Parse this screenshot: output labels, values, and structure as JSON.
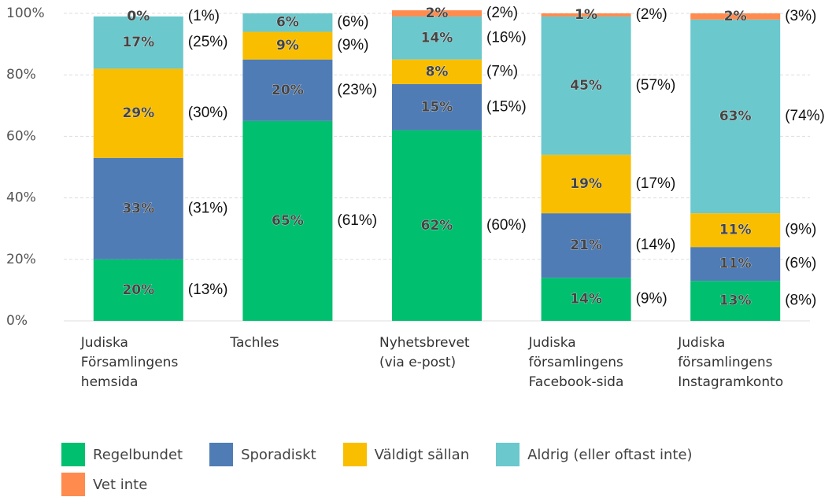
{
  "chart_data": {
    "type": "stacked_bar",
    "categories": [
      "Judiska Församlingens hemsida",
      "Tachles",
      "Nyhetsbrevet (via e-post)",
      "Judiska församlingens Facebook-sida",
      "Judiska församlingens Instagramkonto"
    ],
    "ylim": [
      0,
      100
    ],
    "yticks": [
      {
        "value": 0,
        "label": "0%"
      },
      {
        "value": 20,
        "label": "20%"
      },
      {
        "value": 40,
        "label": "40%"
      },
      {
        "value": 60,
        "label": "60%"
      },
      {
        "value": 80,
        "label": "80%"
      },
      {
        "value": 100,
        "label": "100%"
      }
    ],
    "grid": true,
    "series": [
      {
        "name": "Regelbundet",
        "color": "#00bf6f",
        "values": [
          20,
          65,
          62,
          14,
          13
        ],
        "value_labels": [
          "20%",
          "65%",
          "62%",
          "14%",
          "13%"
        ],
        "annotations": [
          "(13%)",
          "(61%)",
          "(60%)",
          "(9%)",
          "(8%)"
        ]
      },
      {
        "name": "Sporadiskt",
        "color": "#507cb6",
        "values": [
          33,
          20,
          15,
          21,
          11
        ],
        "value_labels": [
          "33%",
          "20%",
          "15%",
          "21%",
          "11%"
        ],
        "annotations": [
          "(31%)",
          "(23%)",
          "(15%)",
          "(14%)",
          "(6%)"
        ]
      },
      {
        "name": "Väldigt sällan",
        "color": "#f9be00",
        "values": [
          29,
          9,
          8,
          19,
          11
        ],
        "value_labels": [
          "29%",
          "9%",
          "8%",
          "19%",
          "11%"
        ],
        "annotations": [
          "(30%)",
          "(9%)",
          "(7%)",
          "(17%)",
          "(9%)"
        ]
      },
      {
        "name": "Aldrig (eller oftast inte)",
        "color": "#6bc8cd",
        "values": [
          17,
          6,
          14,
          45,
          63
        ],
        "value_labels": [
          "17%",
          "6%",
          "14%",
          "45%",
          "63%"
        ],
        "annotations": [
          "(25%)",
          "(6%)",
          "(16%)",
          "(57%)",
          "(74%)"
        ]
      },
      {
        "name": "Vet inte",
        "color": "#ff8b4f",
        "values": [
          0,
          null,
          2,
          1,
          2
        ],
        "value_labels": [
          "0%",
          null,
          "2%",
          "1%",
          "2%"
        ],
        "annotations": [
          "(1%)",
          null,
          "(2%)",
          "(2%)",
          "(3%)"
        ]
      }
    ],
    "legend": "bottom"
  }
}
